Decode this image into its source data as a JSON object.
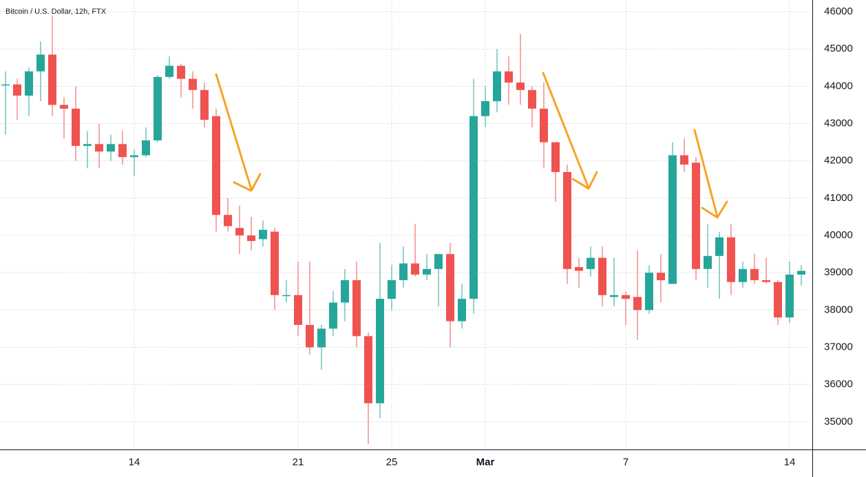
{
  "chart_data": {
    "type": "candlestick",
    "title": "Bitcoin / U.S. Dollar, 12h, FTX",
    "categories": [
      null,
      null,
      null,
      null,
      null,
      null,
      null,
      null,
      null,
      null,
      null,
      "14",
      null,
      null,
      null,
      null,
      null,
      null,
      null,
      null,
      null,
      null,
      null,
      null,
      null,
      "21",
      null,
      null,
      null,
      null,
      null,
      null,
      null,
      "25",
      null,
      null,
      null,
      null,
      null,
      null,
      null,
      "Mar",
      null,
      null,
      null,
      null,
      null,
      null,
      null,
      null,
      null,
      null,
      null,
      "7",
      null,
      null,
      null,
      null,
      null,
      null,
      null,
      null,
      null,
      null,
      null,
      null,
      null,
      "14",
      null
    ],
    "open": [
      44050,
      44050,
      43750,
      44400,
      44850,
      43500,
      43400,
      42400,
      42450,
      42250,
      42450,
      42100,
      42150,
      42550,
      44250,
      44550,
      44200,
      43900,
      43200,
      40550,
      40200,
      40000,
      39900,
      40100,
      38400,
      38400,
      37600,
      37000,
      37500,
      38200,
      38800,
      37300,
      35500,
      38300,
      38800,
      39250,
      38950,
      39100,
      39500,
      37700,
      38300,
      43200,
      43600,
      44400,
      44100,
      43900,
      43400,
      42500,
      41700,
      39150,
      39100,
      39400,
      38350,
      38400,
      38350,
      38000,
      39000,
      38700,
      42150,
      41950,
      39100,
      39450,
      39950,
      38750,
      39100,
      38800,
      38750,
      37800,
      38950
    ],
    "high": [
      44400,
      44200,
      44500,
      45200,
      45900,
      43700,
      44000,
      42800,
      43000,
      42700,
      42800,
      42300,
      42900,
      44300,
      44800,
      44600,
      44400,
      44100,
      43400,
      41000,
      40800,
      40500,
      40400,
      40200,
      38800,
      39300,
      39300,
      37600,
      38500,
      39100,
      39300,
      37400,
      39800,
      39200,
      39700,
      40300,
      39500,
      39500,
      39800,
      38700,
      44200,
      44000,
      45000,
      44800,
      45400,
      44000,
      44100,
      42500,
      41900,
      39400,
      39700,
      39700,
      39400,
      38500,
      39600,
      39200,
      39500,
      42500,
      42600,
      42100,
      40300,
      40100,
      40300,
      39300,
      39500,
      39400,
      38800,
      39300,
      39200
    ],
    "low": [
      42700,
      43100,
      43200,
      43600,
      43200,
      42600,
      42000,
      41800,
      41800,
      42000,
      41900,
      41600,
      42100,
      42500,
      44200,
      43700,
      43400,
      42900,
      40100,
      40100,
      39500,
      39600,
      39700,
      38000,
      38200,
      37300,
      36800,
      36400,
      37300,
      37700,
      37000,
      34400,
      35100,
      38000,
      38600,
      38900,
      38800,
      38100,
      37000,
      37500,
      37900,
      42900,
      43300,
      43500,
      43500,
      42900,
      41800,
      40900,
      38700,
      38600,
      38900,
      38100,
      38100,
      37600,
      37200,
      37900,
      38200,
      38700,
      41700,
      38800,
      38600,
      38300,
      38400,
      38600,
      38700,
      38700,
      37600,
      37650,
      38650
    ],
    "close": [
      44050,
      43750,
      44400,
      44850,
      43500,
      43400,
      42400,
      42450,
      42250,
      42450,
      42100,
      42150,
      42550,
      44250,
      44550,
      44200,
      43900,
      43100,
      40550,
      40250,
      40000,
      39850,
      40150,
      38400,
      38400,
      37600,
      37000,
      37500,
      38200,
      38800,
      37300,
      35500,
      38300,
      38800,
      39250,
      38950,
      39100,
      39500,
      37700,
      38300,
      43200,
      43600,
      44400,
      44100,
      43900,
      43400,
      42500,
      41700,
      39100,
      39050,
      39400,
      38400,
      38400,
      38300,
      38000,
      39000,
      38800,
      42150,
      41900,
      39100,
      39450,
      39950,
      38750,
      39100,
      38800,
      38750,
      37800,
      38950,
      39050
    ],
    "up_color": "#26a69a",
    "down_color": "#ef5350",
    "ylim": [
      34260,
      46000
    ],
    "yticks": [
      35000,
      36000,
      37000,
      38000,
      39000,
      40000,
      41000,
      42000,
      43000,
      44000,
      45000,
      46000
    ],
    "grid": true
  }
}
